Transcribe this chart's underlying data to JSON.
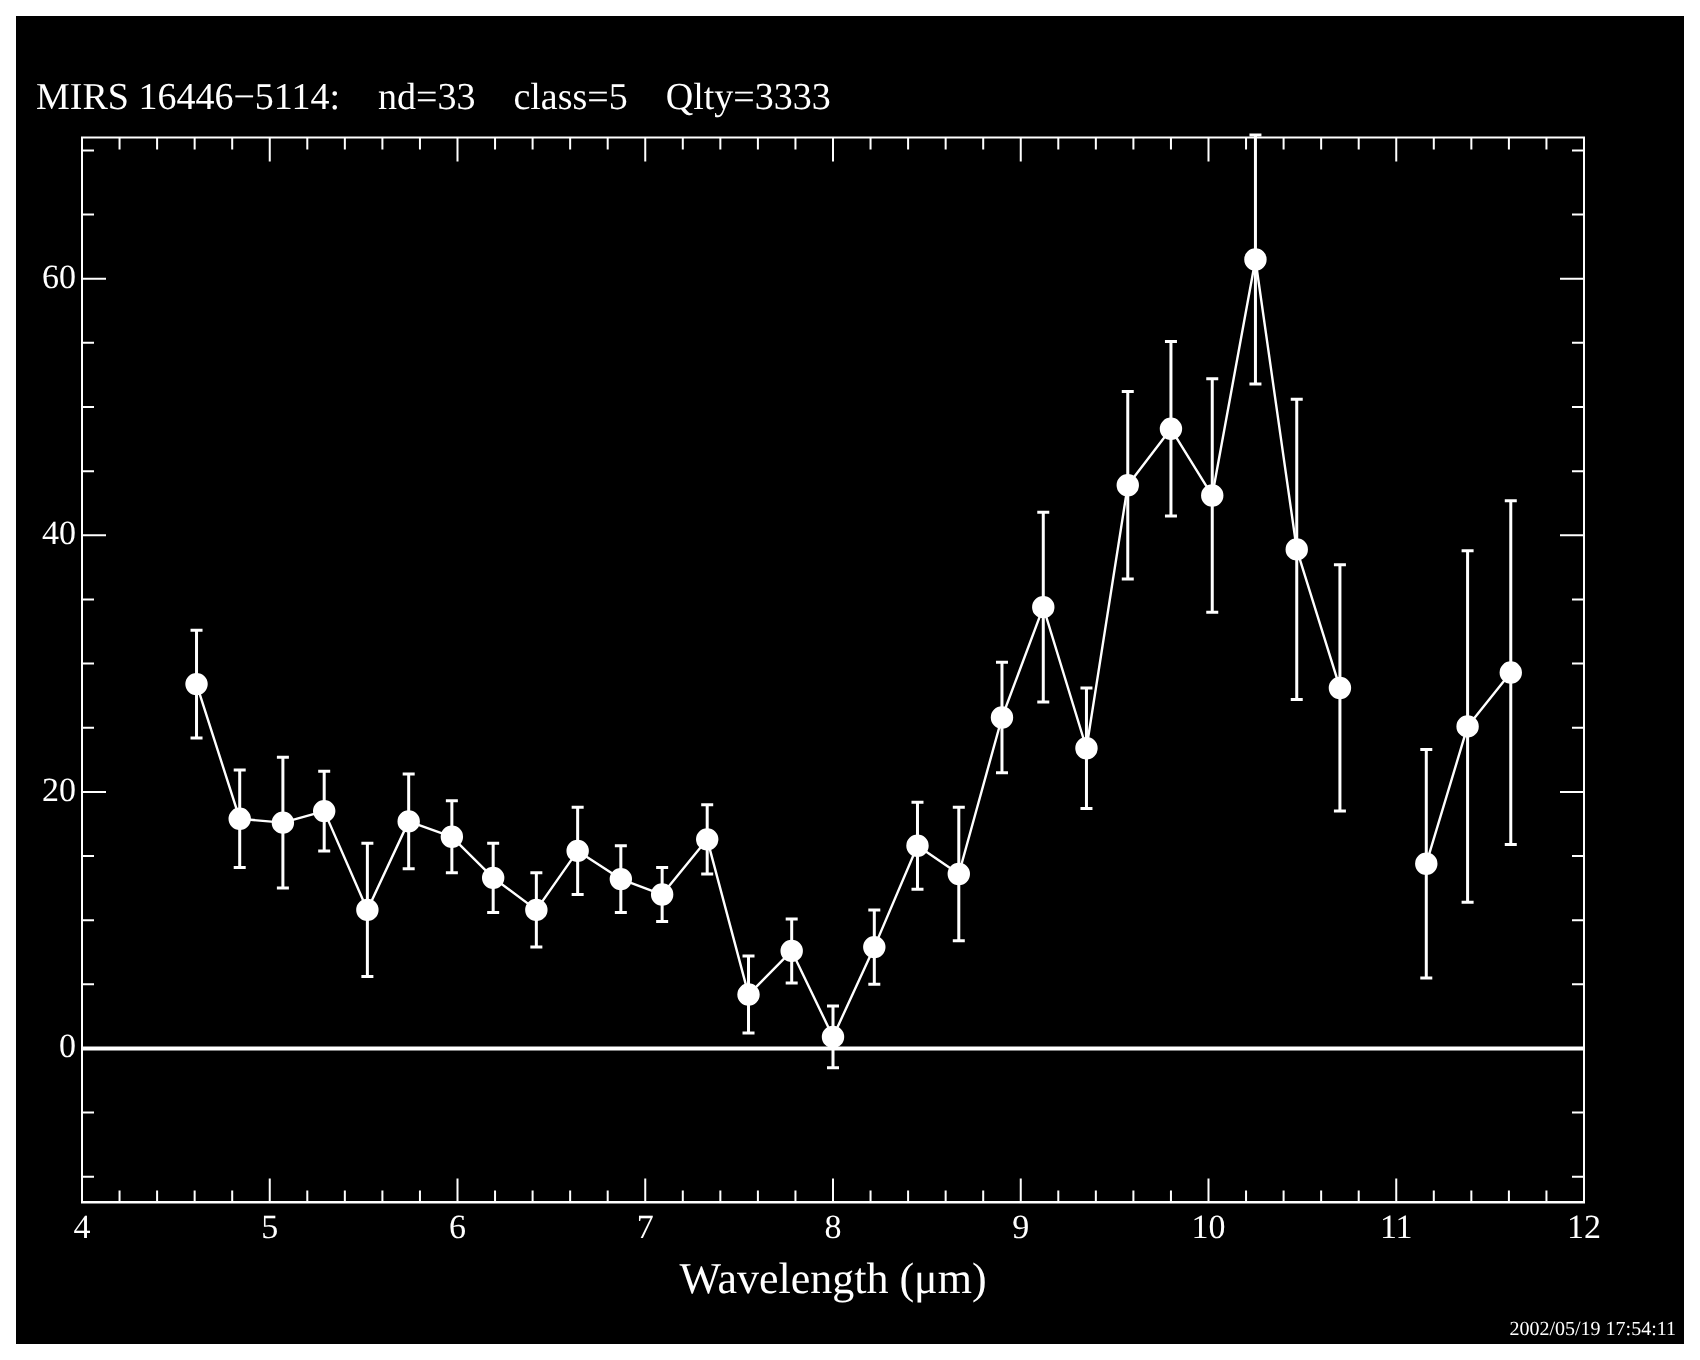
{
  "chart_data": {
    "type": "scatter",
    "title": "MIRS 16446−5114:    nd=33    class=5    Qlty=3333",
    "xlabel": "Wavelength (μm)",
    "x": [
      4.61,
      4.84,
      5.07,
      5.29,
      5.52,
      5.74,
      5.97,
      6.19,
      6.42,
      6.64,
      6.87,
      7.09,
      7.33,
      7.55,
      7.78,
      8.0,
      8.22,
      8.45,
      8.67,
      8.9,
      9.12,
      9.35,
      9.57,
      9.8,
      10.02,
      10.25,
      10.47,
      10.7,
      10.93,
      11.16,
      11.38,
      11.61
    ],
    "series": [
      {
        "type": "line",
        "color": "#ffffff",
        "values": [
          28.4,
          17.9,
          17.6,
          18.5,
          10.8,
          17.7,
          16.5,
          13.3,
          10.8,
          15.4,
          13.2,
          12.0,
          16.3,
          4.2,
          7.6,
          0.9,
          7.9,
          15.8,
          13.6,
          25.8,
          34.4,
          23.4,
          43.9,
          48.3,
          43.1,
          61.5,
          38.9,
          28.1,
          null,
          14.4,
          25.1,
          29.3
        ],
        "errors": [
          4.2,
          3.8,
          5.1,
          3.1,
          5.2,
          3.7,
          2.8,
          2.7,
          2.9,
          3.4,
          2.6,
          2.1,
          2.7,
          3.0,
          2.5,
          2.4,
          2.9,
          3.4,
          5.2,
          4.3,
          7.4,
          4.7,
          7.3,
          6.8,
          9.1,
          9.7,
          11.7,
          9.6,
          null,
          8.9,
          13.7,
          13.4
        ]
      }
    ],
    "marker": "circle",
    "line_style": "solid",
    "grid": false,
    "legend": false,
    "xlim": [
      4,
      12
    ],
    "xticks": [
      4,
      {
        "value": 4.2,
        "label": null
      },
      {
        "value": 4.4,
        "label": null
      },
      {
        "value": 4.6,
        "label": null
      },
      {
        "value": 4.8,
        "label": null
      },
      5,
      {
        "value": 5.2,
        "label": null
      },
      {
        "value": 5.4,
        "label": null
      },
      {
        "value": 5.6,
        "label": null
      },
      {
        "value": 5.8,
        "label": null
      },
      6,
      {
        "value": 6.2,
        "label": null
      },
      {
        "value": 6.4,
        "label": null
      },
      {
        "value": 6.6,
        "label": null
      },
      {
        "value": 6.8,
        "label": null
      },
      7,
      {
        "value": 7.2,
        "label": null
      },
      {
        "value": 7.4,
        "label": null
      },
      {
        "value": 7.6,
        "label": null
      },
      {
        "value": 7.8,
        "label": null
      },
      8,
      {
        "value": 8.2,
        "label": null
      },
      {
        "value": 8.4,
        "label": null
      },
      {
        "value": 8.6,
        "label": null
      },
      {
        "value": 8.8,
        "label": null
      },
      9,
      {
        "value": 9.2,
        "label": null
      },
      {
        "value": 9.4,
        "label": null
      },
      {
        "value": 9.6,
        "label": null
      },
      {
        "value": 9.8,
        "label": null
      },
      10,
      {
        "value": 10.2,
        "label": null
      },
      {
        "value": 10.4,
        "label": null
      },
      {
        "value": 10.6,
        "label": null
      },
      {
        "value": 10.8,
        "label": null
      },
      11,
      {
        "value": 11.2,
        "label": null
      },
      {
        "value": 11.4,
        "label": null
      },
      {
        "value": 11.6,
        "label": null
      },
      {
        "value": 11.8,
        "label": null
      },
      12
    ],
    "ylim": [
      -12,
      71
    ],
    "yticks": [
      {
        "value": -10,
        "label": null
      },
      {
        "value": -5,
        "label": null
      },
      0,
      {
        "value": 5,
        "label": null
      },
      {
        "value": 10,
        "label": null
      },
      {
        "value": 15,
        "label": null
      },
      20,
      {
        "value": 25,
        "label": null
      },
      {
        "value": 30,
        "label": null
      },
      {
        "value": 35,
        "label": null
      },
      40,
      {
        "value": 45,
        "label": null
      },
      {
        "value": 50,
        "label": null
      },
      {
        "value": 55,
        "label": null
      },
      60,
      {
        "value": 65,
        "label": null
      },
      {
        "value": 70,
        "label": null
      }
    ],
    "ref_lines": [
      {
        "axis": "y",
        "value": 0,
        "color": "#ffffff"
      }
    ],
    "annotations": [
      "2002/05/19 17:54:11"
    ]
  }
}
